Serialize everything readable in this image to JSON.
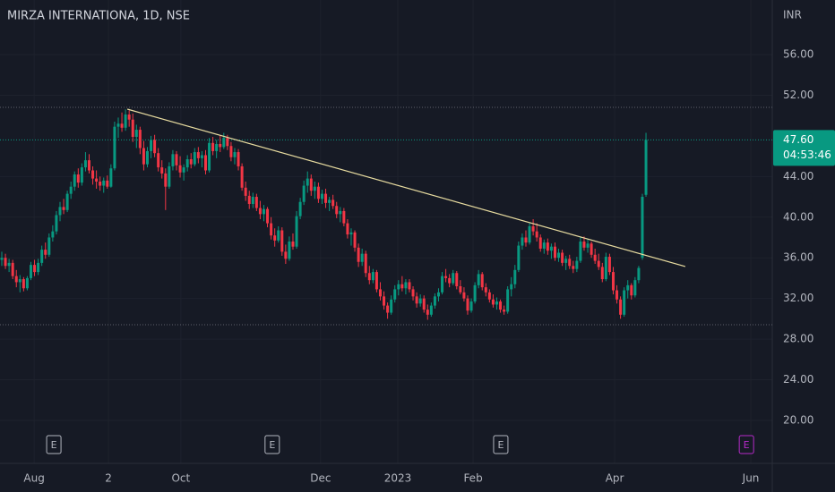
{
  "chart_data": {
    "type": "candlestick",
    "title": "MIRZA INTERNATIONA, 1D, NSE",
    "currency": "INR",
    "up_color": "#089981",
    "down_color": "#f23645",
    "grid": true,
    "ylim": [
      15.77,
      61.37
    ],
    "yticks": [
      {
        "value": 20,
        "label": "20.00"
      },
      {
        "value": 24,
        "label": "24.00"
      },
      {
        "value": 28,
        "label": "28.00"
      },
      {
        "value": 32,
        "label": "32.00"
      },
      {
        "value": 36,
        "label": "36.00"
      },
      {
        "value": 40,
        "label": "40.00"
      },
      {
        "value": 44,
        "label": "44.00"
      },
      {
        "value": 52,
        "label": "52.00"
      },
      {
        "value": 56,
        "label": "56.00"
      }
    ],
    "xlim": [
      -0.49,
      211.7
    ],
    "xticks": [
      {
        "value": 8.9,
        "label": "Aug"
      },
      {
        "value": 29.3,
        "label": "2"
      },
      {
        "value": 49.2,
        "label": "Oct"
      },
      {
        "value": 87.6,
        "label": "Dec"
      },
      {
        "value": 108.8,
        "label": "2023"
      },
      {
        "value": 129.5,
        "label": "Feb"
      },
      {
        "value": 168.4,
        "label": "Apr"
      },
      {
        "value": 205.8,
        "label": "Jun"
      }
    ],
    "last_price": {
      "value": 47.6,
      "label": "47.60"
    },
    "countdown": "04:53:46",
    "hlines": [
      50.81,
      29.42
    ],
    "trendline": {
      "color": "#e8dca0",
      "x": [
        34.5,
        187.8
      ],
      "y": [
        50.63,
        35.14
      ]
    },
    "events": [
      {
        "x": 14.3,
        "label": "E",
        "color": "#b2b5be"
      },
      {
        "x": 74.3,
        "label": "E",
        "color": "#b2b5be"
      },
      {
        "x": 137.1,
        "label": "E",
        "color": "#b2b5be"
      },
      {
        "x": 204.6,
        "label": "E",
        "color": "#b52ac9"
      }
    ],
    "ohlc": [
      [
        35.8,
        36.6,
        35.2,
        36.0
      ],
      [
        36.0,
        36.4,
        34.9,
        35.2
      ],
      [
        35.2,
        35.9,
        34.6,
        35.5
      ],
      [
        35.5,
        35.8,
        33.9,
        34.2
      ],
      [
        34.2,
        34.8,
        33.1,
        33.6
      ],
      [
        33.6,
        34.3,
        32.6,
        33.9
      ],
      [
        33.9,
        34.1,
        32.7,
        33.0
      ],
      [
        33.0,
        34.2,
        32.8,
        34.0
      ],
      [
        34.0,
        35.6,
        33.8,
        35.3
      ],
      [
        35.3,
        35.8,
        34.2,
        34.6
      ],
      [
        34.6,
        35.9,
        34.3,
        35.5
      ],
      [
        35.5,
        37.2,
        35.2,
        36.8
      ],
      [
        36.8,
        37.5,
        35.9,
        36.3
      ],
      [
        36.3,
        38.4,
        36.1,
        38.0
      ],
      [
        38.0,
        39.2,
        37.6,
        38.6
      ],
      [
        38.6,
        40.6,
        38.3,
        40.2
      ],
      [
        40.2,
        41.5,
        39.6,
        41.0
      ],
      [
        41.0,
        41.8,
        40.3,
        40.7
      ],
      [
        40.7,
        42.6,
        40.5,
        42.3
      ],
      [
        42.3,
        43.5,
        41.8,
        43.0
      ],
      [
        43.0,
        44.5,
        42.6,
        44.2
      ],
      [
        44.2,
        44.8,
        42.9,
        43.4
      ],
      [
        43.4,
        45.3,
        43.1,
        44.9
      ],
      [
        44.9,
        46.4,
        44.5,
        45.6
      ],
      [
        45.6,
        46.2,
        44.3,
        44.6
      ],
      [
        44.6,
        45.0,
        43.2,
        43.8
      ],
      [
        43.8,
        44.6,
        42.8,
        43.5
      ],
      [
        43.5,
        44.0,
        42.6,
        43.1
      ],
      [
        43.1,
        43.9,
        42.4,
        43.6
      ],
      [
        43.6,
        44.1,
        42.8,
        43.0
      ],
      [
        43.0,
        45.2,
        42.9,
        44.8
      ],
      [
        44.8,
        49.4,
        44.6,
        48.9
      ],
      [
        48.9,
        49.8,
        47.8,
        49.2
      ],
      [
        49.2,
        50.3,
        48.4,
        48.8
      ],
      [
        48.8,
        50.6,
        48.5,
        50.1
      ],
      [
        50.1,
        50.5,
        48.9,
        49.6
      ],
      [
        49.6,
        50.2,
        47.4,
        47.9
      ],
      [
        47.9,
        49.1,
        46.8,
        48.6
      ],
      [
        48.6,
        48.9,
        46.2,
        46.8
      ],
      [
        46.8,
        47.5,
        44.6,
        45.2
      ],
      [
        45.2,
        46.9,
        44.9,
        46.5
      ],
      [
        46.5,
        48.0,
        45.8,
        47.6
      ],
      [
        47.6,
        48.1,
        45.9,
        46.3
      ],
      [
        46.3,
        46.8,
        44.5,
        44.9
      ],
      [
        44.9,
        45.6,
        43.8,
        44.3
      ],
      [
        44.3,
        44.8,
        40.7,
        43.0
      ],
      [
        43.0,
        45.4,
        42.8,
        45.0
      ],
      [
        45.0,
        46.6,
        44.6,
        46.2
      ],
      [
        46.2,
        46.5,
        44.6,
        45.1
      ],
      [
        45.1,
        46.0,
        43.9,
        44.4
      ],
      [
        44.4,
        45.2,
        43.6,
        44.9
      ],
      [
        44.9,
        46.1,
        44.5,
        45.7
      ],
      [
        45.7,
        46.3,
        44.8,
        45.2
      ],
      [
        45.2,
        46.8,
        45.0,
        46.4
      ],
      [
        46.4,
        46.9,
        45.3,
        45.8
      ],
      [
        45.8,
        46.5,
        44.9,
        46.1
      ],
      [
        46.1,
        46.6,
        44.2,
        44.6
      ],
      [
        44.6,
        47.8,
        44.4,
        47.3
      ],
      [
        47.3,
        47.9,
        46.1,
        46.5
      ],
      [
        46.5,
        47.6,
        45.8,
        47.2
      ],
      [
        47.2,
        48.0,
        46.4,
        46.9
      ],
      [
        46.9,
        48.3,
        46.7,
        47.8
      ],
      [
        47.8,
        48.1,
        46.6,
        47.0
      ],
      [
        47.0,
        47.4,
        45.5,
        45.9
      ],
      [
        45.9,
        46.8,
        45.2,
        46.4
      ],
      [
        46.4,
        46.7,
        44.6,
        45.0
      ],
      [
        45.0,
        45.3,
        42.6,
        42.9
      ],
      [
        42.9,
        43.5,
        41.6,
        42.1
      ],
      [
        42.1,
        42.6,
        40.8,
        41.3
      ],
      [
        41.3,
        42.4,
        40.9,
        42.0
      ],
      [
        42.0,
        42.3,
        40.6,
        40.9
      ],
      [
        40.9,
        41.6,
        39.8,
        40.3
      ],
      [
        40.3,
        41.2,
        39.6,
        40.8
      ],
      [
        40.8,
        41.0,
        39.0,
        39.4
      ],
      [
        39.4,
        40.0,
        37.8,
        38.2
      ],
      [
        38.2,
        38.9,
        37.1,
        37.7
      ],
      [
        37.7,
        39.1,
        37.5,
        38.7
      ],
      [
        38.7,
        39.0,
        36.2,
        36.6
      ],
      [
        36.6,
        37.3,
        35.4,
        35.9
      ],
      [
        35.9,
        38.1,
        35.7,
        37.6
      ],
      [
        37.6,
        38.4,
        36.8,
        37.1
      ],
      [
        37.1,
        40.6,
        36.9,
        40.1
      ],
      [
        40.1,
        41.9,
        39.8,
        41.5
      ],
      [
        41.5,
        43.6,
        41.2,
        43.1
      ],
      [
        43.1,
        44.5,
        42.4,
        43.8
      ],
      [
        43.8,
        44.2,
        42.1,
        42.6
      ],
      [
        42.6,
        43.5,
        41.8,
        43.0
      ],
      [
        43.0,
        43.4,
        41.4,
        41.8
      ],
      [
        41.8,
        42.7,
        41.3,
        42.3
      ],
      [
        42.3,
        42.8,
        40.9,
        41.4
      ],
      [
        41.4,
        42.0,
        40.6,
        41.7
      ],
      [
        41.7,
        42.2,
        40.8,
        41.1
      ],
      [
        41.1,
        41.5,
        39.9,
        40.3
      ],
      [
        40.3,
        41.0,
        39.5,
        40.6
      ],
      [
        40.6,
        40.9,
        39.1,
        39.4
      ],
      [
        39.4,
        39.8,
        37.9,
        38.3
      ],
      [
        38.3,
        38.9,
        37.2,
        38.5
      ],
      [
        38.5,
        38.7,
        36.6,
        37.0
      ],
      [
        37.0,
        37.4,
        35.1,
        35.6
      ],
      [
        35.6,
        36.9,
        35.2,
        36.4
      ],
      [
        36.4,
        36.7,
        34.1,
        34.5
      ],
      [
        34.5,
        35.2,
        33.4,
        33.8
      ],
      [
        33.8,
        34.9,
        33.5,
        34.6
      ],
      [
        34.6,
        34.8,
        32.6,
        32.9
      ],
      [
        32.9,
        33.6,
        31.8,
        32.2
      ],
      [
        32.2,
        32.7,
        30.9,
        31.3
      ],
      [
        31.3,
        31.6,
        30.0,
        30.6
      ],
      [
        30.6,
        32.3,
        30.4,
        31.9
      ],
      [
        31.9,
        33.3,
        31.6,
        32.9
      ],
      [
        32.9,
        33.8,
        32.3,
        33.4
      ],
      [
        33.4,
        34.2,
        32.7,
        33.0
      ],
      [
        33.0,
        33.9,
        32.4,
        33.6
      ],
      [
        33.6,
        33.9,
        32.6,
        32.9
      ],
      [
        32.9,
        33.2,
        31.8,
        32.2
      ],
      [
        32.2,
        32.6,
        31.1,
        31.5
      ],
      [
        31.5,
        32.4,
        31.2,
        32.0
      ],
      [
        32.0,
        32.3,
        30.6,
        30.9
      ],
      [
        30.9,
        31.4,
        29.9,
        30.4
      ],
      [
        30.4,
        31.6,
        30.2,
        31.3
      ],
      [
        31.3,
        32.5,
        31.0,
        32.2
      ],
      [
        32.2,
        33.0,
        31.7,
        32.6
      ],
      [
        32.6,
        34.6,
        32.4,
        34.2
      ],
      [
        34.2,
        34.9,
        33.6,
        34.0
      ],
      [
        34.0,
        34.4,
        33.1,
        33.5
      ],
      [
        33.5,
        34.8,
        33.3,
        34.5
      ],
      [
        34.5,
        34.7,
        32.9,
        33.2
      ],
      [
        33.2,
        33.8,
        32.4,
        32.6
      ],
      [
        32.6,
        33.1,
        31.7,
        32.0
      ],
      [
        32.0,
        32.3,
        30.4,
        30.8
      ],
      [
        30.8,
        32.0,
        30.6,
        31.7
      ],
      [
        31.7,
        33.6,
        31.5,
        33.3
      ],
      [
        33.3,
        34.8,
        33.0,
        34.4
      ],
      [
        34.4,
        34.6,
        32.8,
        33.1
      ],
      [
        33.1,
        33.5,
        32.2,
        32.6
      ],
      [
        32.6,
        32.9,
        31.6,
        31.9
      ],
      [
        31.9,
        32.4,
        31.1,
        31.4
      ],
      [
        31.4,
        32.1,
        30.9,
        31.7
      ],
      [
        31.7,
        31.9,
        30.6,
        30.9
      ],
      [
        30.9,
        31.3,
        30.4,
        30.7
      ],
      [
        30.7,
        33.2,
        30.5,
        32.9
      ],
      [
        32.9,
        34.1,
        32.2,
        33.4
      ],
      [
        33.4,
        35.3,
        33.0,
        34.8
      ],
      [
        34.8,
        37.6,
        34.6,
        37.2
      ],
      [
        37.2,
        38.4,
        36.8,
        38.0
      ],
      [
        38.0,
        38.7,
        37.1,
        37.5
      ],
      [
        37.5,
        39.4,
        37.3,
        39.1
      ],
      [
        39.1,
        39.8,
        38.2,
        38.6
      ],
      [
        38.6,
        39.4,
        37.6,
        38.0
      ],
      [
        38.0,
        38.3,
        36.6,
        36.9
      ],
      [
        36.9,
        37.8,
        36.4,
        37.5
      ],
      [
        37.5,
        37.9,
        36.3,
        36.7
      ],
      [
        36.7,
        37.4,
        35.9,
        37.1
      ],
      [
        37.1,
        37.5,
        35.7,
        36.0
      ],
      [
        36.0,
        36.9,
        35.6,
        36.5
      ],
      [
        36.5,
        36.8,
        35.2,
        35.5
      ],
      [
        35.5,
        36.2,
        34.8,
        35.9
      ],
      [
        35.9,
        36.3,
        34.9,
        35.2
      ],
      [
        35.2,
        35.7,
        34.5,
        34.9
      ],
      [
        34.9,
        36.1,
        34.6,
        35.7
      ],
      [
        35.7,
        38.0,
        35.5,
        37.6
      ],
      [
        37.6,
        38.1,
        36.7,
        37.0
      ],
      [
        37.0,
        37.8,
        36.5,
        37.4
      ],
      [
        37.4,
        37.6,
        36.0,
        36.3
      ],
      [
        36.3,
        36.9,
        35.4,
        35.7
      ],
      [
        35.7,
        36.4,
        34.8,
        35.1
      ],
      [
        35.1,
        35.5,
        33.6,
        33.9
      ],
      [
        33.9,
        36.5,
        33.7,
        36.1
      ],
      [
        36.1,
        36.4,
        34.3,
        34.6
      ],
      [
        34.6,
        35.1,
        32.4,
        32.8
      ],
      [
        32.8,
        33.3,
        31.5,
        31.9
      ],
      [
        31.9,
        32.2,
        30.0,
        30.4
      ],
      [
        30.4,
        33.1,
        30.2,
        32.8
      ],
      [
        32.8,
        33.8,
        32.0,
        33.3
      ],
      [
        33.3,
        33.5,
        31.9,
        32.3
      ],
      [
        32.3,
        34.1,
        32.1,
        33.8
      ],
      [
        33.8,
        35.2,
        33.5,
        35.0
      ],
      [
        36.0,
        42.3,
        35.8,
        42.0
      ],
      [
        42.2,
        48.3,
        42.0,
        47.6
      ]
    ]
  }
}
